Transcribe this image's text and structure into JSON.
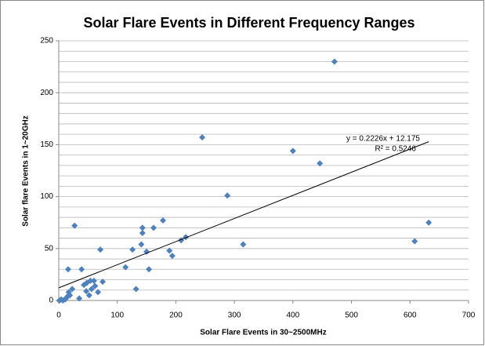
{
  "chart_data": {
    "type": "scatter",
    "title": "Solar Flare Events in Different Frequency Ranges",
    "x_label": "Solar Flare Events in 30~2500MHz",
    "y_label": "Solar flare Events in 1~20GHz",
    "color": "#4f81bd",
    "x": [
      1,
      4,
      7,
      11,
      12,
      15,
      17,
      19,
      23,
      16,
      27,
      35,
      39,
      43,
      48,
      47,
      52,
      54,
      56,
      60,
      62,
      67,
      71,
      75,
      114,
      126,
      132,
      141,
      143,
      143,
      150,
      154,
      162,
      178,
      189,
      194,
      209,
      217,
      245,
      288,
      315,
      400,
      446,
      471,
      608,
      632
    ],
    "values": [
      0,
      1,
      0,
      1,
      2,
      4,
      8,
      5,
      11,
      30,
      72,
      2,
      30,
      15,
      17,
      9,
      5,
      19,
      11,
      19,
      14,
      8,
      49,
      18,
      32,
      49,
      11,
      54,
      65,
      70,
      47,
      30,
      70,
      77,
      48,
      43,
      58,
      61,
      157,
      101,
      54,
      144,
      132,
      230,
      57,
      75
    ],
    "xlim": [
      0,
      700
    ],
    "xticks": [
      0,
      100,
      200,
      300,
      400,
      500,
      600,
      700
    ],
    "ylim": [
      0,
      250
    ],
    "yticks": [
      0,
      50,
      100,
      150,
      200,
      250
    ],
    "y_minor_ticks": [
      10,
      20,
      30,
      40,
      60,
      70,
      80,
      90,
      110,
      120,
      130,
      140,
      160,
      170,
      180,
      190,
      210,
      220,
      230,
      240
    ],
    "grid": true,
    "trendline": {
      "slope": 0.2226,
      "intercept": 12.175,
      "xrange": [
        0,
        632
      ],
      "color": "#000000"
    },
    "annotations": [
      "y = 0.2226x + 12.175",
      "R² = 0.5246"
    ]
  }
}
